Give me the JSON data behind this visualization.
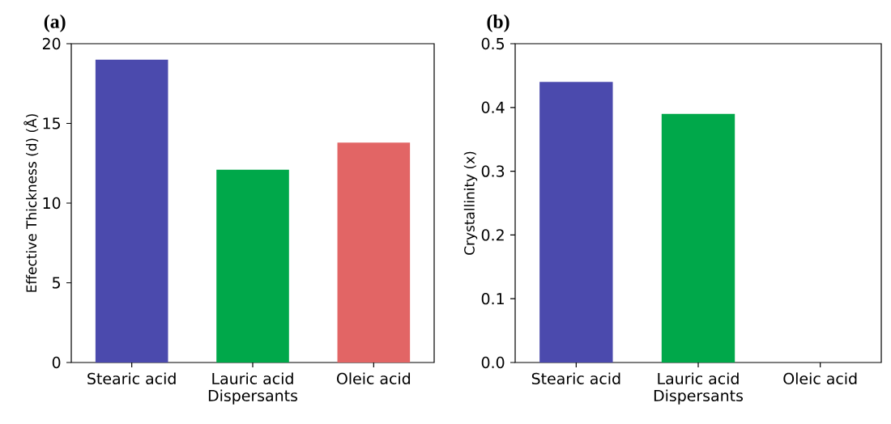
{
  "chart_data": [
    {
      "type": "bar",
      "title": "(a)",
      "xlabel": "Dispersants",
      "ylabel": "Effective Thickness (d) (Å)",
      "categories": [
        "Stearic acid",
        "Lauric acid",
        "Oleic acid"
      ],
      "values": [
        19.0,
        12.1,
        13.8
      ],
      "colors": [
        "#4b4aad",
        "#00a84a",
        "#e26565"
      ],
      "ylim": [
        0,
        20
      ],
      "yticks": [
        0,
        5,
        10,
        15,
        20
      ]
    },
    {
      "type": "bar",
      "title": "(b)",
      "xlabel": "Dispersants",
      "ylabel": "Crystallinity (x)",
      "categories": [
        "Stearic acid",
        "Lauric acid",
        "Oleic acid"
      ],
      "values": [
        0.44,
        0.39,
        0
      ],
      "colors": [
        "#4b4aad",
        "#00a84a",
        "#e26565"
      ],
      "ylim": [
        0,
        0.5
      ],
      "yticks": [
        {
          "value": 0,
          "label": "0.0"
        },
        0.1,
        0.2,
        0.3,
        0.4,
        0.5
      ]
    }
  ]
}
